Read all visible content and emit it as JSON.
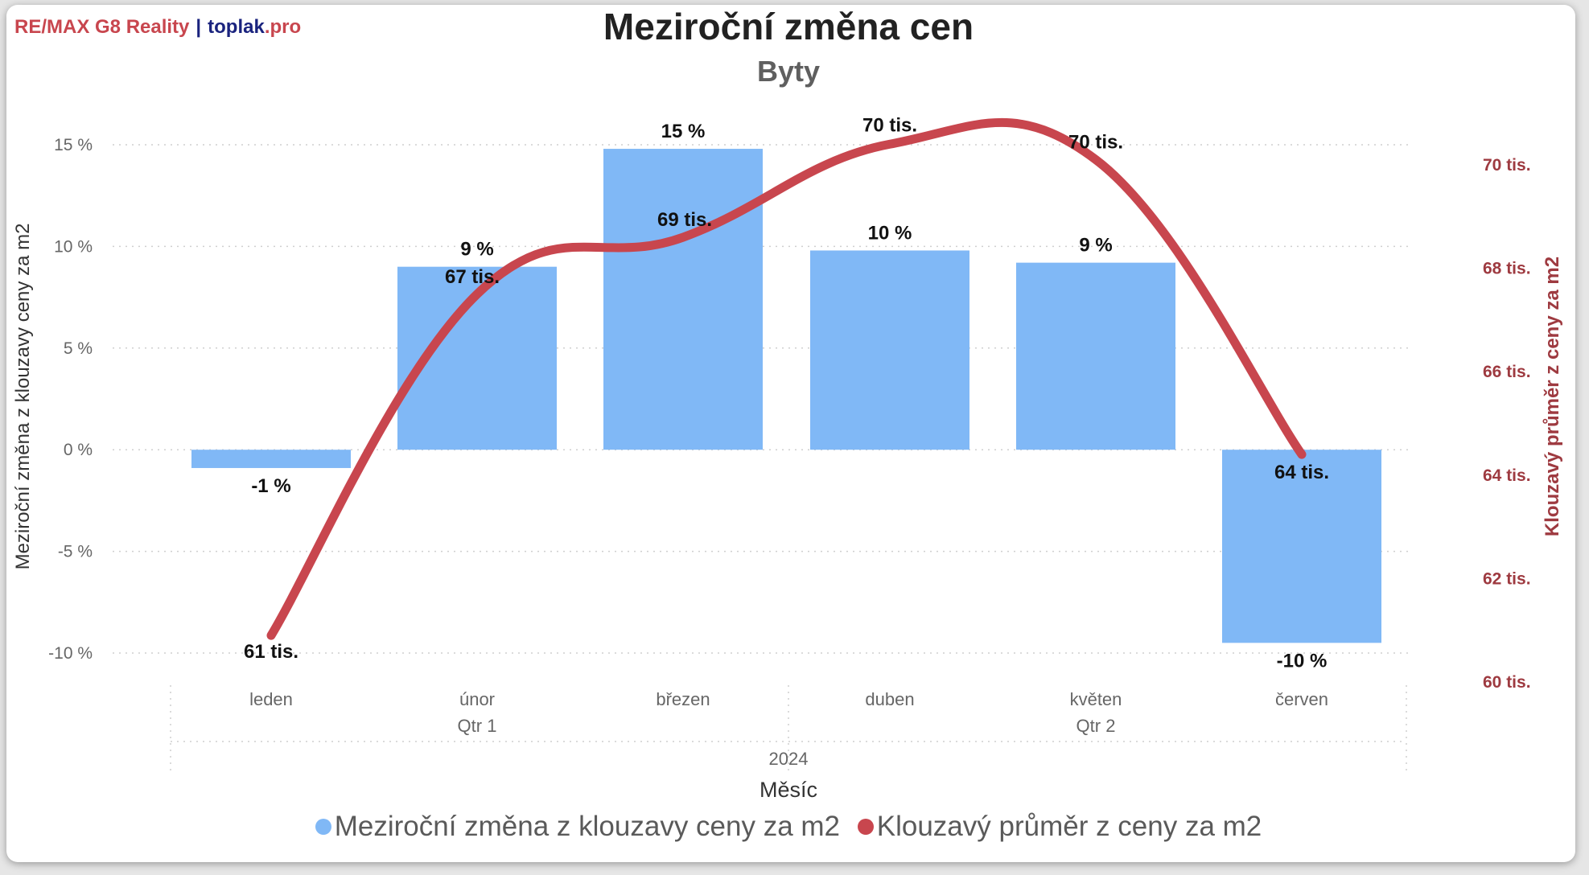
{
  "brand": {
    "part1": "RE/MAX G8 Reality",
    "separator": "|",
    "part2": "toplak",
    "part3": ".pro"
  },
  "colors": {
    "bar": "#80b8f6",
    "line": "#c8464e",
    "right_axis": "#9e3a40",
    "title": "#222222",
    "subtitle": "#5f5f5f",
    "grid": "#cfcfcf"
  },
  "chart_data": {
    "type": "bar",
    "title": "Meziroční změna cen",
    "subtitle": "Byty",
    "categories": [
      "leden",
      "únor",
      "březen",
      "duben",
      "květen",
      "červen"
    ],
    "quarters": [
      {
        "label": "Qtr 1",
        "months": [
          "leden",
          "únor",
          "březen"
        ]
      },
      {
        "label": "Qtr 2",
        "months": [
          "duben",
          "květen",
          "červen"
        ]
      }
    ],
    "year": "2024",
    "xlabel": "Měsíc",
    "ylabel": "Meziroční změna z klouzavy ceny za m2",
    "y2label": "Klouzavý průměr z ceny za m2",
    "ylim": [
      -10,
      15
    ],
    "y2lim": [
      60,
      70
    ],
    "yticks": [
      "15 %",
      "10 %",
      "5 %",
      "0 %",
      "-5 %",
      "-10 %"
    ],
    "y2ticks": [
      "70 tis.",
      "68 tis.",
      "66 tis.",
      "64 tis.",
      "62 tis.",
      "60 tis."
    ],
    "grid": true,
    "legend_position": "bottom",
    "series": [
      {
        "name": "Meziroční změna z klouzavy ceny za m2",
        "type": "bar",
        "axis": "left",
        "values": [
          -0.9,
          9.0,
          14.8,
          9.8,
          9.2,
          -9.5
        ],
        "labels": [
          "-1 %",
          "9 %",
          "15 %",
          "10 %",
          "9 %",
          "-10 %"
        ]
      },
      {
        "name": "Klouzavý průměr z ceny za m2",
        "type": "line",
        "axis": "right",
        "values": [
          60.9,
          67.5,
          68.6,
          70.4,
          70.1,
          64.4
        ],
        "labels": [
          "61 tis.",
          "67 tis.",
          "69 tis.",
          "70 tis.",
          "70 tis.",
          "64 tis."
        ]
      }
    ]
  }
}
